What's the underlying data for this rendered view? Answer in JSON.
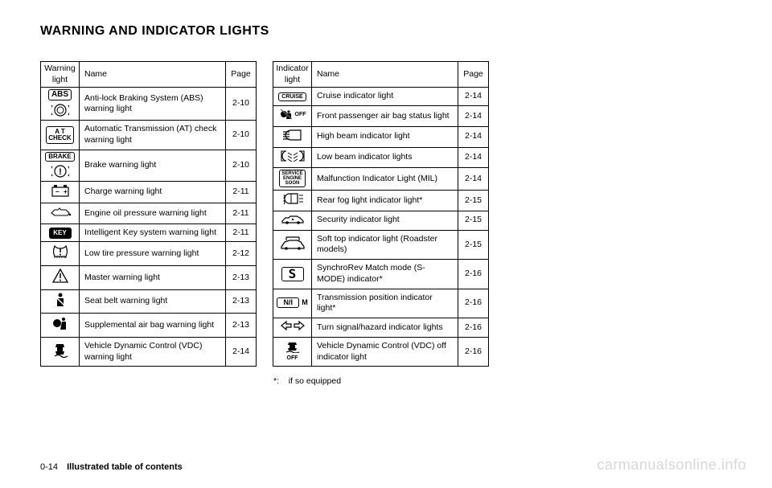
{
  "title": "WARNING AND INDICATOR LIGHTS",
  "footnote_marker": "*:",
  "footnote_text": "if so equipped",
  "footer": {
    "page_num": "0-14",
    "section": "Illustrated table of contents"
  },
  "watermark": "carmanualsonline.info",
  "left_table": {
    "headers": {
      "col1": "Warning light",
      "col2": "Name",
      "col3": "Page"
    },
    "rows": [
      {
        "icon": "abs",
        "name": "Anti-lock Braking System (ABS) warning light",
        "page": "2-10"
      },
      {
        "icon": "atcheck",
        "name": "Automatic Transmission (AT) check warning light",
        "page": "2-10"
      },
      {
        "icon": "brake",
        "name": "Brake warning light",
        "page": "2-10"
      },
      {
        "icon": "battery",
        "name": "Charge warning light",
        "page": "2-11"
      },
      {
        "icon": "oil",
        "name": "Engine oil pressure warning light",
        "page": "2-11"
      },
      {
        "icon": "key",
        "name": "Intelligent Key system warning light",
        "page": "2-11"
      },
      {
        "icon": "tire",
        "name": "Low tire pressure warning light",
        "page": "2-12"
      },
      {
        "icon": "master",
        "name": "Master warning light",
        "page": "2-13"
      },
      {
        "icon": "seatbelt",
        "name": "Seat belt warning light",
        "page": "2-13"
      },
      {
        "icon": "airbag",
        "name": "Supplemental air bag warning light",
        "page": "2-13"
      },
      {
        "icon": "vdc",
        "name": "Vehicle Dynamic Control (VDC) warning light",
        "page": "2-14"
      }
    ]
  },
  "right_table": {
    "headers": {
      "col1": "Indicator light",
      "col2": "Name",
      "col3": "Page"
    },
    "rows": [
      {
        "icon": "cruise",
        "name": "Cruise indicator light",
        "page": "2-14"
      },
      {
        "icon": "passairbag",
        "name": "Front passenger air bag status light",
        "page": "2-14"
      },
      {
        "icon": "highbeam",
        "name": "High beam indicator light",
        "page": "2-14"
      },
      {
        "icon": "lowbeam",
        "name": "Low beam indicator lights",
        "page": "2-14"
      },
      {
        "icon": "mil",
        "name": "Malfunction Indicator Light (MIL)",
        "page": "2-14"
      },
      {
        "icon": "rearfog",
        "name": "Rear fog light indicator light*",
        "page": "2-15"
      },
      {
        "icon": "security",
        "name": "Security indicator light",
        "page": "2-15"
      },
      {
        "icon": "softtop",
        "name": "Soft top indicator light (Roadster models)",
        "page": "2-15"
      },
      {
        "icon": "smode",
        "name": "SynchroRev Match mode (S-MODE) indicator*",
        "page": "2-16"
      },
      {
        "icon": "transpos",
        "name": "Transmission position indicator light*",
        "page": "2-16"
      },
      {
        "icon": "turnsig",
        "name": "Turn signal/hazard indicator lights",
        "page": "2-16"
      },
      {
        "icon": "vdcoff",
        "name": "Vehicle Dynamic Control (VDC) off indicator light",
        "page": "2-16"
      }
    ]
  },
  "icon_labels": {
    "abs_top": "ABS",
    "atcheck_l1": "A T",
    "atcheck_l2": "CHECK",
    "brake_top": "BRAKE",
    "key_txt": "KEY",
    "cruise_txt": "CRUISE",
    "passairbag_suffix": "OFF",
    "mil_l1": "SERVICE",
    "mil_l2": "ENGINE",
    "mil_l3": "SOON",
    "smode_txt": "S",
    "transpos_txt": "N/I",
    "transpos_suffix": "M",
    "vdcoff_suffix": "OFF"
  }
}
